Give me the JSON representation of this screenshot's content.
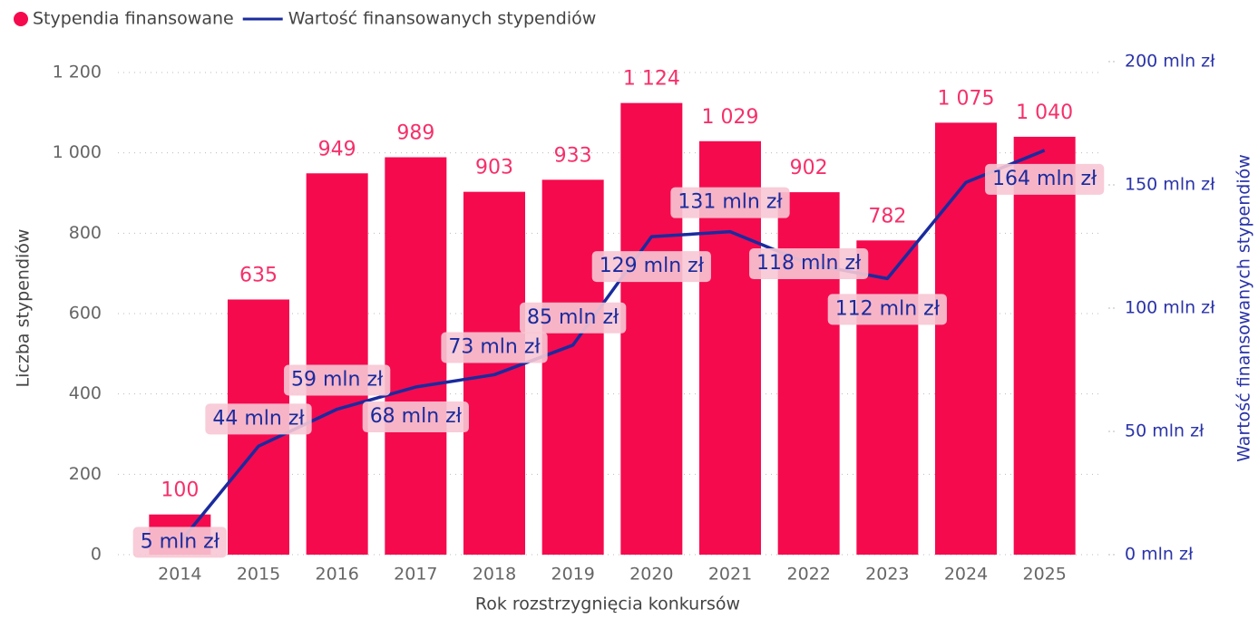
{
  "chart_data": {
    "type": "bar-line",
    "categories": [
      "2014",
      "2015",
      "2016",
      "2017",
      "2018",
      "2019",
      "2020",
      "2021",
      "2022",
      "2023",
      "2024",
      "2025"
    ],
    "series": [
      {
        "name": "Stypendia finansowane",
        "type": "bar",
        "color": "#f50a4e",
        "values": [
          100,
          635,
          949,
          989,
          903,
          933,
          1124,
          1029,
          902,
          782,
          1075,
          1040
        ],
        "value_labels": [
          "100",
          "635",
          "949",
          "989",
          "903",
          "933",
          "1 124",
          "1 029",
          "902",
          "782",
          "1 075",
          "1 040"
        ]
      },
      {
        "name": "Wartość finansowanych stypendiów",
        "type": "line",
        "axis": "y2",
        "color": "#1a2b9e",
        "values": [
          5,
          44,
          59,
          68,
          73,
          85,
          129,
          131,
          118,
          112,
          151,
          164
        ],
        "value_labels": [
          "5 mln zł",
          "44 mln zł",
          "59 mln zł",
          "68 mln zł",
          "73 mln zł",
          "85 mln zł",
          "129 mln zł",
          "131 mln zł",
          "118 mln zł",
          "112 mln zł",
          null,
          "164 mln zł"
        ]
      }
    ],
    "x_label": "Rok rozstrzygnięcia konkursów",
    "y_label": "Liczba stypendiów",
    "y2_label": "Wartość finansowanych stypendiów",
    "ylim": [
      0,
      1227
    ],
    "yticks": [
      0,
      200,
      400,
      600,
      800,
      {
        "value": 1000,
        "label": "1 000"
      },
      {
        "value": 1200,
        "label": "1 200"
      }
    ],
    "y2lim": [
      0,
      200
    ],
    "y2ticks": [
      {
        "value": 0,
        "label": "0 mln zł"
      },
      {
        "value": 50,
        "label": "50 mln zł"
      },
      {
        "value": 100,
        "label": "100 mln zł"
      },
      {
        "value": 150,
        "label": "150 mln zł"
      },
      {
        "value": 200,
        "label": "200 mln zł"
      }
    ],
    "grid": true,
    "legend": "top-left"
  }
}
